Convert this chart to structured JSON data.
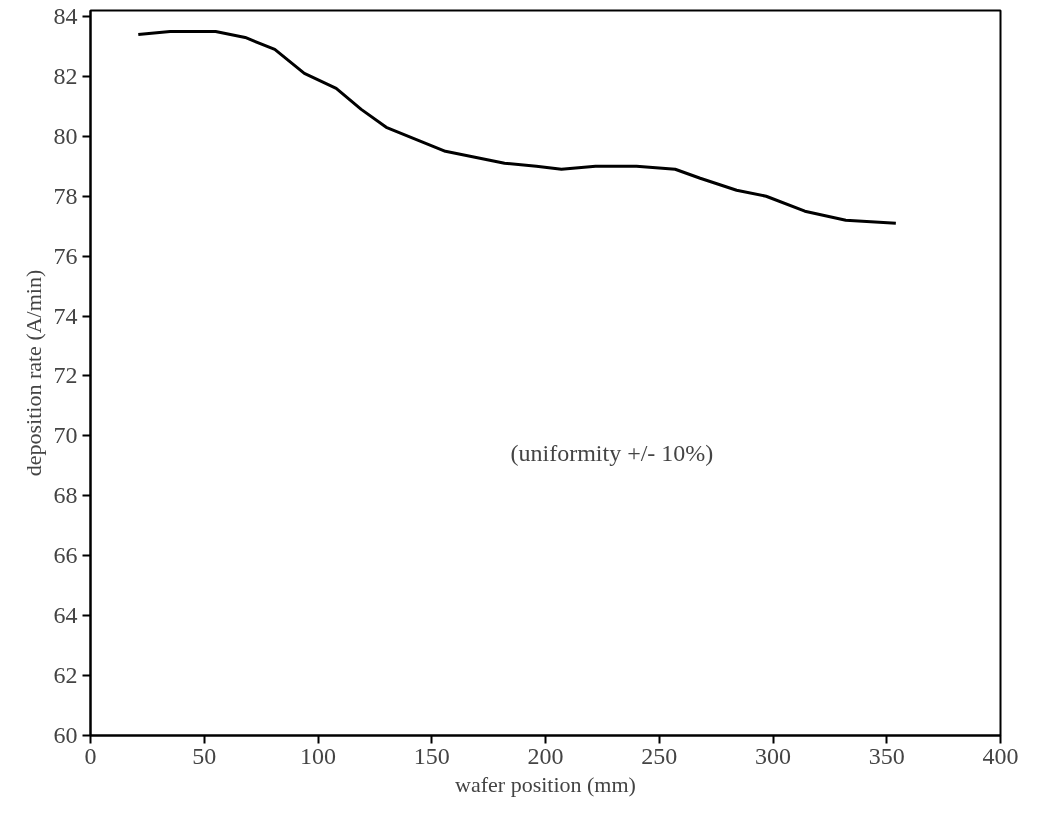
{
  "chart_data": {
    "type": "line",
    "xlabel": "wafer position (mm)",
    "ylabel": "deposition rate (A/min)",
    "annotations": [
      "(uniformity +/- 10%)"
    ],
    "x": [
      21,
      35,
      55,
      68,
      81,
      94,
      108,
      119,
      130,
      143,
      156,
      169,
      182,
      196,
      207,
      222,
      240,
      257,
      268,
      284,
      297,
      314,
      332,
      354
    ],
    "series": [
      {
        "color": "#000000",
        "values": [
          83.4,
          83.5,
          83.5,
          83.3,
          82.9,
          82.1,
          81.6,
          80.9,
          80.3,
          79.9,
          79.5,
          79.3,
          79.1,
          79.0,
          78.9,
          79.0,
          79.0,
          78.9,
          78.6,
          78.2,
          78.0,
          77.5,
          77.2,
          77.1
        ]
      }
    ],
    "xlim": [
      0,
      400
    ],
    "ylim": [
      60,
      84.2
    ],
    "xticks": [
      0,
      50,
      100,
      150,
      200,
      250,
      300,
      350,
      400
    ],
    "yticks": [
      60,
      62,
      64,
      66,
      68,
      70,
      72,
      74,
      76,
      78,
      80,
      82,
      84
    ]
  }
}
